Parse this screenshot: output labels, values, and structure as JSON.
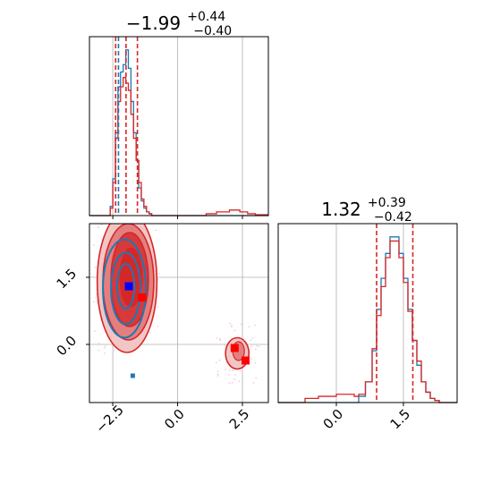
{
  "chart_data": [
    {
      "type": "histogram",
      "panel": "top-left",
      "title": {
        "main": "−1.99",
        "sup": "+0.44",
        "sub": "−0.40"
      },
      "xlim": [
        -3.4,
        3.5
      ],
      "x_ticks": [
        -2.5,
        0.0,
        2.5
      ],
      "x_tick_labels_shown": false,
      "grid": true,
      "quantile_lines": {
        "color": "#d62728",
        "style": "dashed",
        "values": [
          -2.39,
          -1.99,
          -1.55
        ]
      },
      "quantile_lines_other": {
        "color": "#1f77b4",
        "style": "dashed",
        "values": [
          -2.28
        ]
      },
      "series": [
        {
          "color": "#1f77b4",
          "bin_edges": [
            -3.4,
            -2.6,
            -2.5,
            -2.4,
            -2.3,
            -2.2,
            -2.1,
            -2.0,
            -1.9,
            -1.8,
            -1.7,
            -1.6,
            -1.5,
            -1.4,
            -1.3,
            -1.2,
            -1.1,
            -1.0,
            3.5
          ],
          "counts": [
            0.0,
            0.05,
            0.2,
            0.45,
            0.7,
            0.78,
            0.82,
            0.9,
            0.8,
            0.62,
            0.45,
            0.3,
            0.15,
            0.08,
            0.04,
            0.02,
            0.01,
            0.0
          ]
        },
        {
          "color": "#d62728",
          "bin_edges": [
            -3.4,
            -2.6,
            -2.5,
            -2.4,
            -2.3,
            -2.2,
            -2.1,
            -2.0,
            -1.9,
            -1.8,
            -1.7,
            -1.6,
            -1.5,
            -1.4,
            -1.3,
            -1.2,
            -1.1,
            -1.0,
            1.1,
            1.5,
            2.0,
            2.4,
            2.7,
            3.0,
            3.5
          ],
          "counts": [
            0.0,
            0.04,
            0.18,
            0.42,
            0.62,
            0.7,
            0.75,
            0.72,
            0.68,
            0.55,
            0.42,
            0.3,
            0.18,
            0.09,
            0.05,
            0.02,
            0.01,
            0.0,
            0.01,
            0.02,
            0.03,
            0.02,
            0.01,
            0.005
          ]
        }
      ]
    },
    {
      "type": "histogram",
      "panel": "bottom-right",
      "title": {
        "main": "1.32",
        "sup": "+0.39",
        "sub": "−0.42"
      },
      "xlim": [
        -1.3,
        2.7
      ],
      "x_ticks": [
        0.0,
        1.5
      ],
      "x_tick_labels": [
        "0.0",
        "1.5"
      ],
      "grid": true,
      "quantile_lines": {
        "color": "#d62728",
        "style": "dashed",
        "values": [
          0.9,
          1.71
        ]
      },
      "series": [
        {
          "color": "#1f77b4",
          "bin_edges": [
            -1.3,
            0.5,
            0.65,
            0.8,
            0.9,
            1.0,
            1.1,
            1.2,
            1.3,
            1.4,
            1.5,
            1.6,
            1.7,
            1.8,
            1.9,
            2.0,
            2.1,
            2.2,
            2.3,
            2.7
          ],
          "counts": [
            0.0,
            0.03,
            0.1,
            0.25,
            0.45,
            0.6,
            0.72,
            0.8,
            0.8,
            0.72,
            0.6,
            0.45,
            0.3,
            0.18,
            0.1,
            0.05,
            0.02,
            0.01,
            0.0
          ]
        },
        {
          "color": "#d62728",
          "bin_edges": [
            -1.3,
            -0.7,
            -0.4,
            0.0,
            0.4,
            0.5,
            0.65,
            0.8,
            0.9,
            1.0,
            1.1,
            1.2,
            1.3,
            1.4,
            1.5,
            1.6,
            1.7,
            1.8,
            1.9,
            2.0,
            2.1,
            2.2,
            2.3,
            2.7
          ],
          "counts": [
            0.0,
            0.02,
            0.03,
            0.04,
            0.03,
            0.04,
            0.1,
            0.26,
            0.42,
            0.56,
            0.7,
            0.78,
            0.78,
            0.7,
            0.58,
            0.44,
            0.3,
            0.2,
            0.1,
            0.05,
            0.02,
            0.01,
            0.0
          ]
        }
      ]
    },
    {
      "type": "contour",
      "panel": "bottom-left",
      "xlim": [
        -3.4,
        3.5
      ],
      "ylim": [
        -1.3,
        2.7
      ],
      "x_ticks": [
        -2.5,
        0.0,
        2.5
      ],
      "x_tick_labels": [
        "−2.5",
        "0.0",
        "2.5"
      ],
      "y_ticks": [
        0.0,
        1.5
      ],
      "y_tick_labels": [
        "0.0",
        "1.5"
      ],
      "grid": true,
      "red_contours": [
        {
          "cx": -1.95,
          "cy": 1.4,
          "rx": 1.15,
          "ry": 1.58,
          "fill": "#f3c6c6",
          "level": 1
        },
        {
          "cx": -1.9,
          "cy": 1.4,
          "rx": 0.98,
          "ry": 1.3,
          "fill": "#e37f7f",
          "level": 2
        },
        {
          "cx": -1.85,
          "cy": 1.45,
          "rx": 0.72,
          "ry": 1.05,
          "fill": "#d63a3a",
          "level": 3
        },
        {
          "cx": -1.8,
          "cy": 1.5,
          "rx": 0.42,
          "ry": 0.65,
          "fill": "#d62728",
          "level": 4
        }
      ],
      "red_secondary_contour": {
        "cx": 2.3,
        "cy": -0.2,
        "rx": 0.45,
        "ry": 0.35
      },
      "blue_contours": [
        {
          "cx": -2.05,
          "cy": 1.25,
          "rx": 0.83,
          "ry": 1.1
        },
        {
          "cx": -2.0,
          "cy": 1.25,
          "rx": 0.57,
          "ry": 0.8
        },
        {
          "cx": -2.0,
          "cy": 1.3,
          "rx": 0.33,
          "ry": 0.5
        }
      ],
      "points": [
        {
          "x": -1.88,
          "y": 1.3,
          "color": "#0000ff"
        },
        {
          "x": -1.37,
          "y": 1.05,
          "color": "#ff0000"
        },
        {
          "x": 2.2,
          "y": -0.08,
          "color": "#ff0000"
        },
        {
          "x": 2.62,
          "y": -0.36,
          "color": "#ff0000"
        },
        {
          "x": -1.73,
          "y": -0.7,
          "color": "#1f77b4"
        }
      ],
      "scatter_color": "#f2b6d6"
    }
  ]
}
